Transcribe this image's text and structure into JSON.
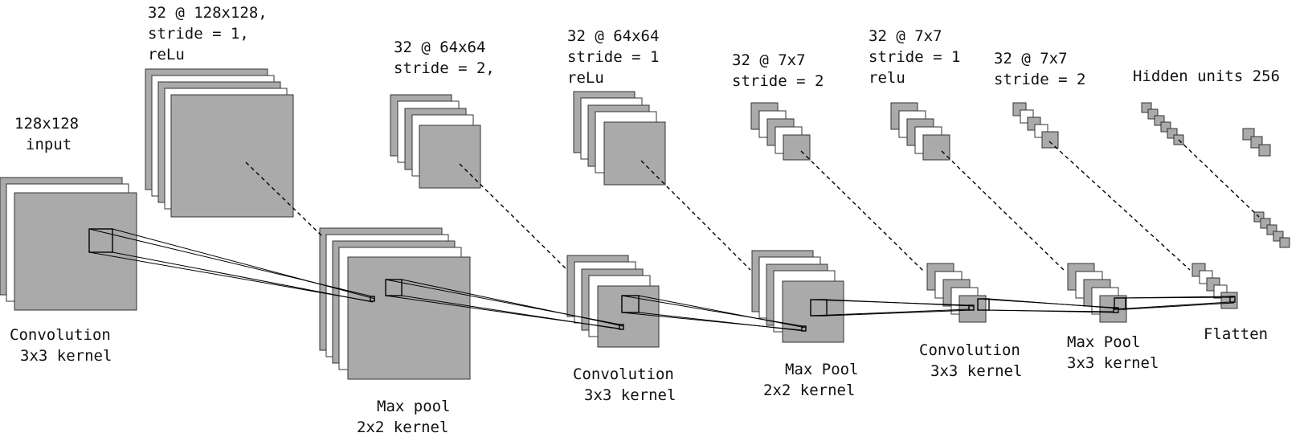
{
  "diagram": {
    "top_labels": {
      "input": [
        "128x128",
        "input"
      ],
      "conv1": [
        "32 @ 128x128,",
        "stride = 1,",
        "reLu"
      ],
      "pool1": [
        "32 @ 64x64",
        "stride = 2,"
      ],
      "conv2": [
        "32 @ 64x64",
        "stride = 1",
        "reLu"
      ],
      "pool2": [
        "32 @ 7x7",
        "stride = 2"
      ],
      "conv3": [
        "32 @ 7x7",
        "stride = 1",
        "relu"
      ],
      "pool3": [
        "32 @ 7x7",
        "stride = 2"
      ],
      "hidden": [
        "Hidden units 256"
      ]
    },
    "op_labels": {
      "conv1": [
        "Convolution",
        "3x3 kernel"
      ],
      "pool1": [
        "Max pool",
        "2x2 kernel"
      ],
      "conv2": [
        "Convolution",
        "3x3 kernel"
      ],
      "pool2": [
        "Max Pool",
        "2x2 kernel"
      ],
      "conv3": [
        "Convolution",
        "3x3 kernel"
      ],
      "pool3": [
        "Max Pool",
        "3x3 kernel"
      ],
      "flatten": [
        "Flatten"
      ]
    }
  }
}
